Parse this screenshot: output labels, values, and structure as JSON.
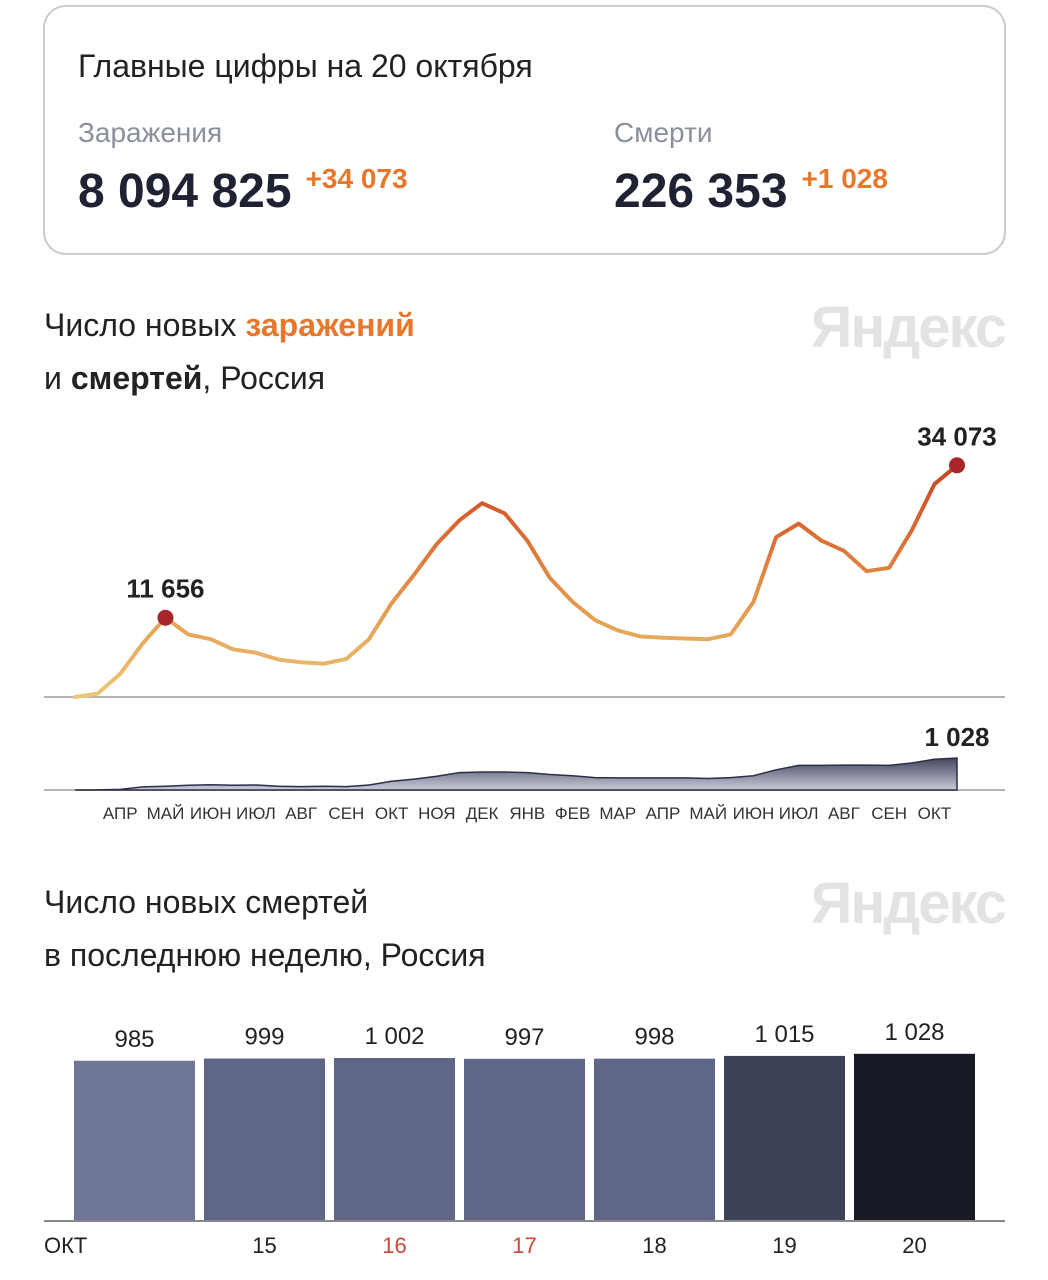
{
  "summary": {
    "title": "Главные цифры на 20 октября",
    "items": [
      {
        "label": "Заражения",
        "value": "8 094 825",
        "delta": "+34 073"
      },
      {
        "label": "Смерти",
        "value": "226 353",
        "delta": "+1 028"
      }
    ]
  },
  "chart_data": [
    {
      "type": "line",
      "title": [
        "Число новых",
        "заражений",
        "и",
        "смертей",
        ", Россия"
      ],
      "logo": "Яндекс",
      "categories": [
        null,
        null,
        "АПР",
        null,
        "МАЙ",
        null,
        "ИЮН",
        null,
        "ИЮЛ",
        null,
        "АВГ",
        null,
        "СЕН",
        null,
        "ОКТ",
        null,
        "НОЯ",
        null,
        "ДЕК",
        null,
        "ЯНВ",
        null,
        "ФЕВ",
        null,
        "МАР",
        null,
        "АПР",
        null,
        "МАЙ",
        null,
        "ИЮН",
        null,
        "ИЮЛ",
        null,
        "АВГ",
        null,
        "СЕН",
        null,
        "ОКТ",
        null
      ],
      "series": [
        {
          "style": "line",
          "colors": [
            "#ecc678",
            "#e39a4e",
            "#d7612f",
            "#b72e22"
          ],
          "marker_color": "#a8262a",
          "ylim": [
            0,
            40000
          ],
          "values": [
            0,
            500,
            3400,
            7900,
            11656,
            9200,
            8500,
            7000,
            6500,
            5500,
            5100,
            4900,
            5600,
            8500,
            13800,
            18000,
            22500,
            26000,
            28500,
            27000,
            23000,
            17500,
            14000,
            11300,
            9800,
            8900,
            8700,
            8600,
            8500,
            9200,
            14000,
            23500,
            25500,
            23000,
            21500,
            18500,
            19000,
            24500,
            31300,
            34073
          ],
          "value_labels": [
            null,
            null,
            null,
            null,
            "11 656",
            null,
            null,
            null,
            null,
            null,
            null,
            null,
            null,
            null,
            null,
            null,
            null,
            null,
            null,
            null,
            null,
            null,
            null,
            null,
            null,
            null,
            null,
            null,
            null,
            null,
            null,
            null,
            null,
            null,
            null,
            null,
            null,
            null,
            null,
            "34 073"
          ]
        },
        {
          "style": "area",
          "colors": [
            "#c9ccd8",
            "#2b2e4a"
          ],
          "ylim": [
            0,
            1200
          ],
          "values": [
            0,
            2,
            20,
            100,
            120,
            150,
            170,
            150,
            160,
            120,
            110,
            120,
            110,
            160,
            280,
            350,
            440,
            560,
            580,
            580,
            560,
            500,
            460,
            400,
            390,
            390,
            390,
            390,
            370,
            400,
            460,
            650,
            790,
            790,
            800,
            800,
            790,
            870,
            990,
            1028
          ],
          "value_labels": [
            null,
            null,
            null,
            null,
            null,
            null,
            null,
            null,
            null,
            null,
            null,
            null,
            null,
            null,
            null,
            null,
            null,
            null,
            null,
            null,
            null,
            null,
            null,
            null,
            null,
            null,
            null,
            null,
            null,
            null,
            null,
            null,
            null,
            null,
            null,
            null,
            null,
            null,
            null,
            "1 028"
          ]
        }
      ]
    },
    {
      "type": "bar",
      "title": [
        "Число новых смертей",
        "в последнюю неделю, Россия"
      ],
      "logo": "Яндекс",
      "month_label": "ОКТ",
      "categories": [
        null,
        "15",
        "16",
        "17",
        "18",
        "19",
        "20"
      ],
      "category_colors": [
        "#222222",
        "#222222",
        "#c8473a",
        "#c8473a",
        "#222222",
        "#222222",
        "#222222"
      ],
      "values": [
        985,
        999,
        1002,
        997,
        998,
        1015,
        1028
      ],
      "value_labels": [
        "985",
        "999",
        "1 002",
        "997",
        "998",
        "1 015",
        "1 028"
      ],
      "colors": [
        "#6f7696",
        "#5f6686",
        "#5f6686",
        "#5f6686",
        "#5f6686",
        "#3e4259",
        "#181a26"
      ],
      "ylim": [
        0,
        1200
      ]
    }
  ]
}
